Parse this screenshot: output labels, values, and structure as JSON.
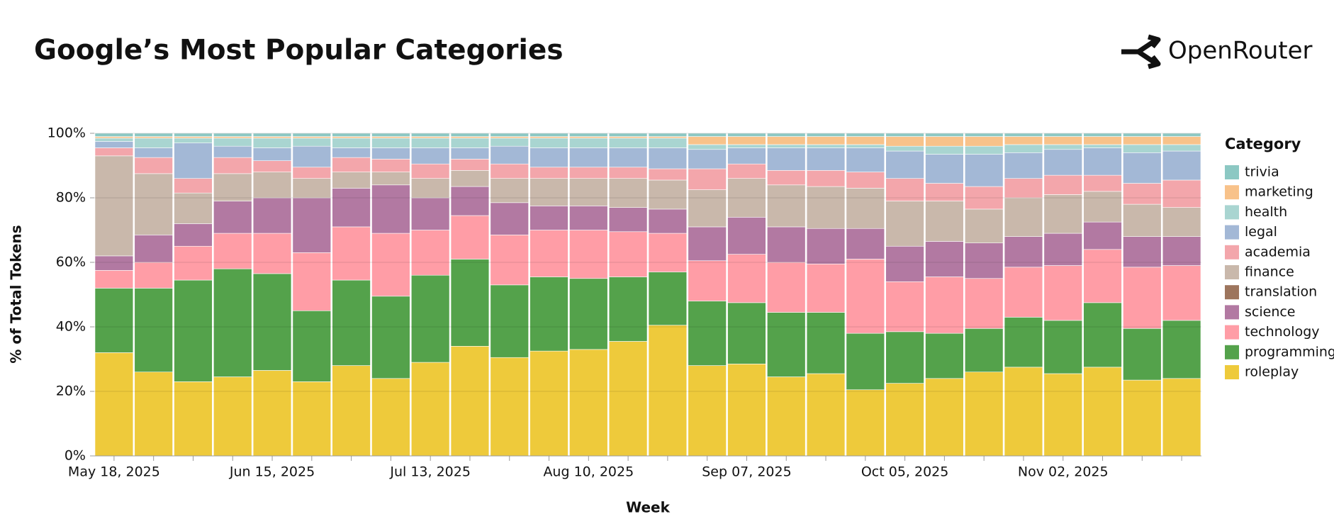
{
  "brand": "OpenRouter",
  "chart_data": {
    "type": "stacked_bar_percent",
    "title": "Google’s Most Popular Categories",
    "x_label": "Week",
    "y_label": "% of Total Tokens",
    "legend_title": "Category",
    "categories": [
      "May 18, 2025",
      null,
      null,
      null,
      "Jun 15, 2025",
      null,
      null,
      null,
      "Jul 13, 2025",
      null,
      null,
      null,
      "Aug 10, 2025",
      null,
      null,
      null,
      "Sep 07, 2025",
      null,
      null,
      null,
      "Oct 05, 2025",
      null,
      null,
      null,
      "Nov 02, 2025",
      null,
      null,
      null
    ],
    "ylim": [
      0,
      100
    ],
    "yticks": [
      {
        "value": 0,
        "label": "0%"
      },
      {
        "value": 20,
        "label": "20%"
      },
      {
        "value": 40,
        "label": "40%"
      },
      {
        "value": 60,
        "label": "60%"
      },
      {
        "value": 80,
        "label": "80%"
      },
      {
        "value": 100,
        "label": "100%"
      }
    ],
    "grid": true,
    "legend_position": "right",
    "series": [
      {
        "name": "roleplay",
        "color": "#eeca3b",
        "values": [
          32,
          26,
          23,
          24.5,
          26.5,
          23,
          28,
          24,
          29,
          34,
          30.5,
          32.5,
          33,
          35.5,
          40.5,
          28,
          28.5,
          24.5,
          25.5,
          20.5,
          22.5,
          24,
          26,
          27.5,
          25.5,
          27.5,
          23.5,
          24
        ]
      },
      {
        "name": "programming",
        "color": "#54a24b",
        "values": [
          20,
          26,
          31.5,
          33.5,
          30,
          22,
          26.5,
          25.5,
          27,
          27,
          22.5,
          23,
          22,
          20,
          16.5,
          20,
          19,
          20,
          19,
          17.5,
          16,
          14,
          13.5,
          15.5,
          16.5,
          20,
          16,
          18
        ]
      },
      {
        "name": "technology",
        "color": "#ff9da6",
        "values": [
          5.5,
          8,
          10.5,
          11,
          12.5,
          18,
          16.5,
          19.5,
          14,
          13.5,
          15.5,
          14.5,
          15,
          14,
          12,
          12.5,
          15,
          15.5,
          15,
          23,
          15.5,
          17.5,
          15.5,
          15.5,
          17,
          16.5,
          19,
          17
        ]
      },
      {
        "name": "science",
        "color": "#b279a2",
        "values": [
          4.5,
          8.5,
          7,
          10,
          11,
          17,
          12,
          15,
          10,
          9,
          10,
          7.5,
          7.5,
          7.5,
          7.5,
          10.5,
          11.5,
          11,
          11,
          9.5,
          11,
          11,
          11,
          9.5,
          10,
          8.5,
          9.5,
          9
        ]
      },
      {
        "name": "translation",
        "color": "#9d755d",
        "values": [
          0,
          0,
          0,
          0,
          0,
          0,
          0,
          0,
          0,
          0,
          0,
          0,
          0,
          0,
          0,
          0,
          0,
          0,
          0,
          0,
          0,
          0,
          0,
          0,
          0,
          0,
          0,
          0
        ]
      },
      {
        "name": "finance",
        "color": "#c9b8ab",
        "values": [
          31,
          19,
          9.5,
          8.5,
          8,
          6,
          5,
          4,
          6,
          5,
          7.5,
          8.5,
          8.5,
          9,
          9,
          11.5,
          12,
          13,
          13,
          12.5,
          14,
          12.5,
          10.5,
          12,
          12,
          9.5,
          10,
          9
        ]
      },
      {
        "name": "academia",
        "color": "#f3a6ab",
        "values": [
          2.5,
          5,
          4.5,
          5,
          3.5,
          3.5,
          4.5,
          4,
          4.5,
          3.5,
          4.5,
          3.5,
          3.5,
          3.5,
          3.5,
          6.5,
          4.5,
          4.5,
          5,
          5,
          7,
          5.5,
          7,
          6,
          6,
          5,
          6.5,
          8.5
        ]
      },
      {
        "name": "legal",
        "color": "#a3b8d6",
        "values": [
          2,
          3,
          11,
          3.5,
          4,
          6.5,
          3,
          3.5,
          5,
          3.5,
          5.5,
          6,
          6,
          6,
          6.5,
          6,
          5,
          7,
          7,
          7.5,
          8.5,
          9,
          10,
          8,
          8,
          8.5,
          9.5,
          9
        ]
      },
      {
        "name": "health",
        "color": "#a9d5d1",
        "values": [
          1,
          3,
          1.5,
          2.5,
          3,
          2.5,
          3,
          3,
          3,
          3,
          2.5,
          3,
          3,
          3,
          3,
          1.5,
          1,
          1,
          1,
          1,
          1.5,
          2.5,
          2.5,
          2.5,
          1.5,
          1,
          2.5,
          2
        ]
      },
      {
        "name": "marketing",
        "color": "#f8c28a",
        "values": [
          0.5,
          0.5,
          0.5,
          0.5,
          0.5,
          0.5,
          0.5,
          0.5,
          0.5,
          0.5,
          0.5,
          0.5,
          0.5,
          0.5,
          0.5,
          2.5,
          2.5,
          2.5,
          2.5,
          2.5,
          3,
          3,
          3,
          2.5,
          2.5,
          2.5,
          2.5,
          2.5
        ]
      },
      {
        "name": "trivia",
        "color": "#8cc8c3",
        "values": [
          1,
          1,
          1,
          1,
          1,
          1,
          1,
          1,
          1,
          1,
          1,
          1,
          1,
          1,
          1,
          1,
          1,
          1,
          1,
          1,
          1,
          1,
          1,
          1,
          1,
          1,
          1,
          1
        ]
      }
    ]
  }
}
